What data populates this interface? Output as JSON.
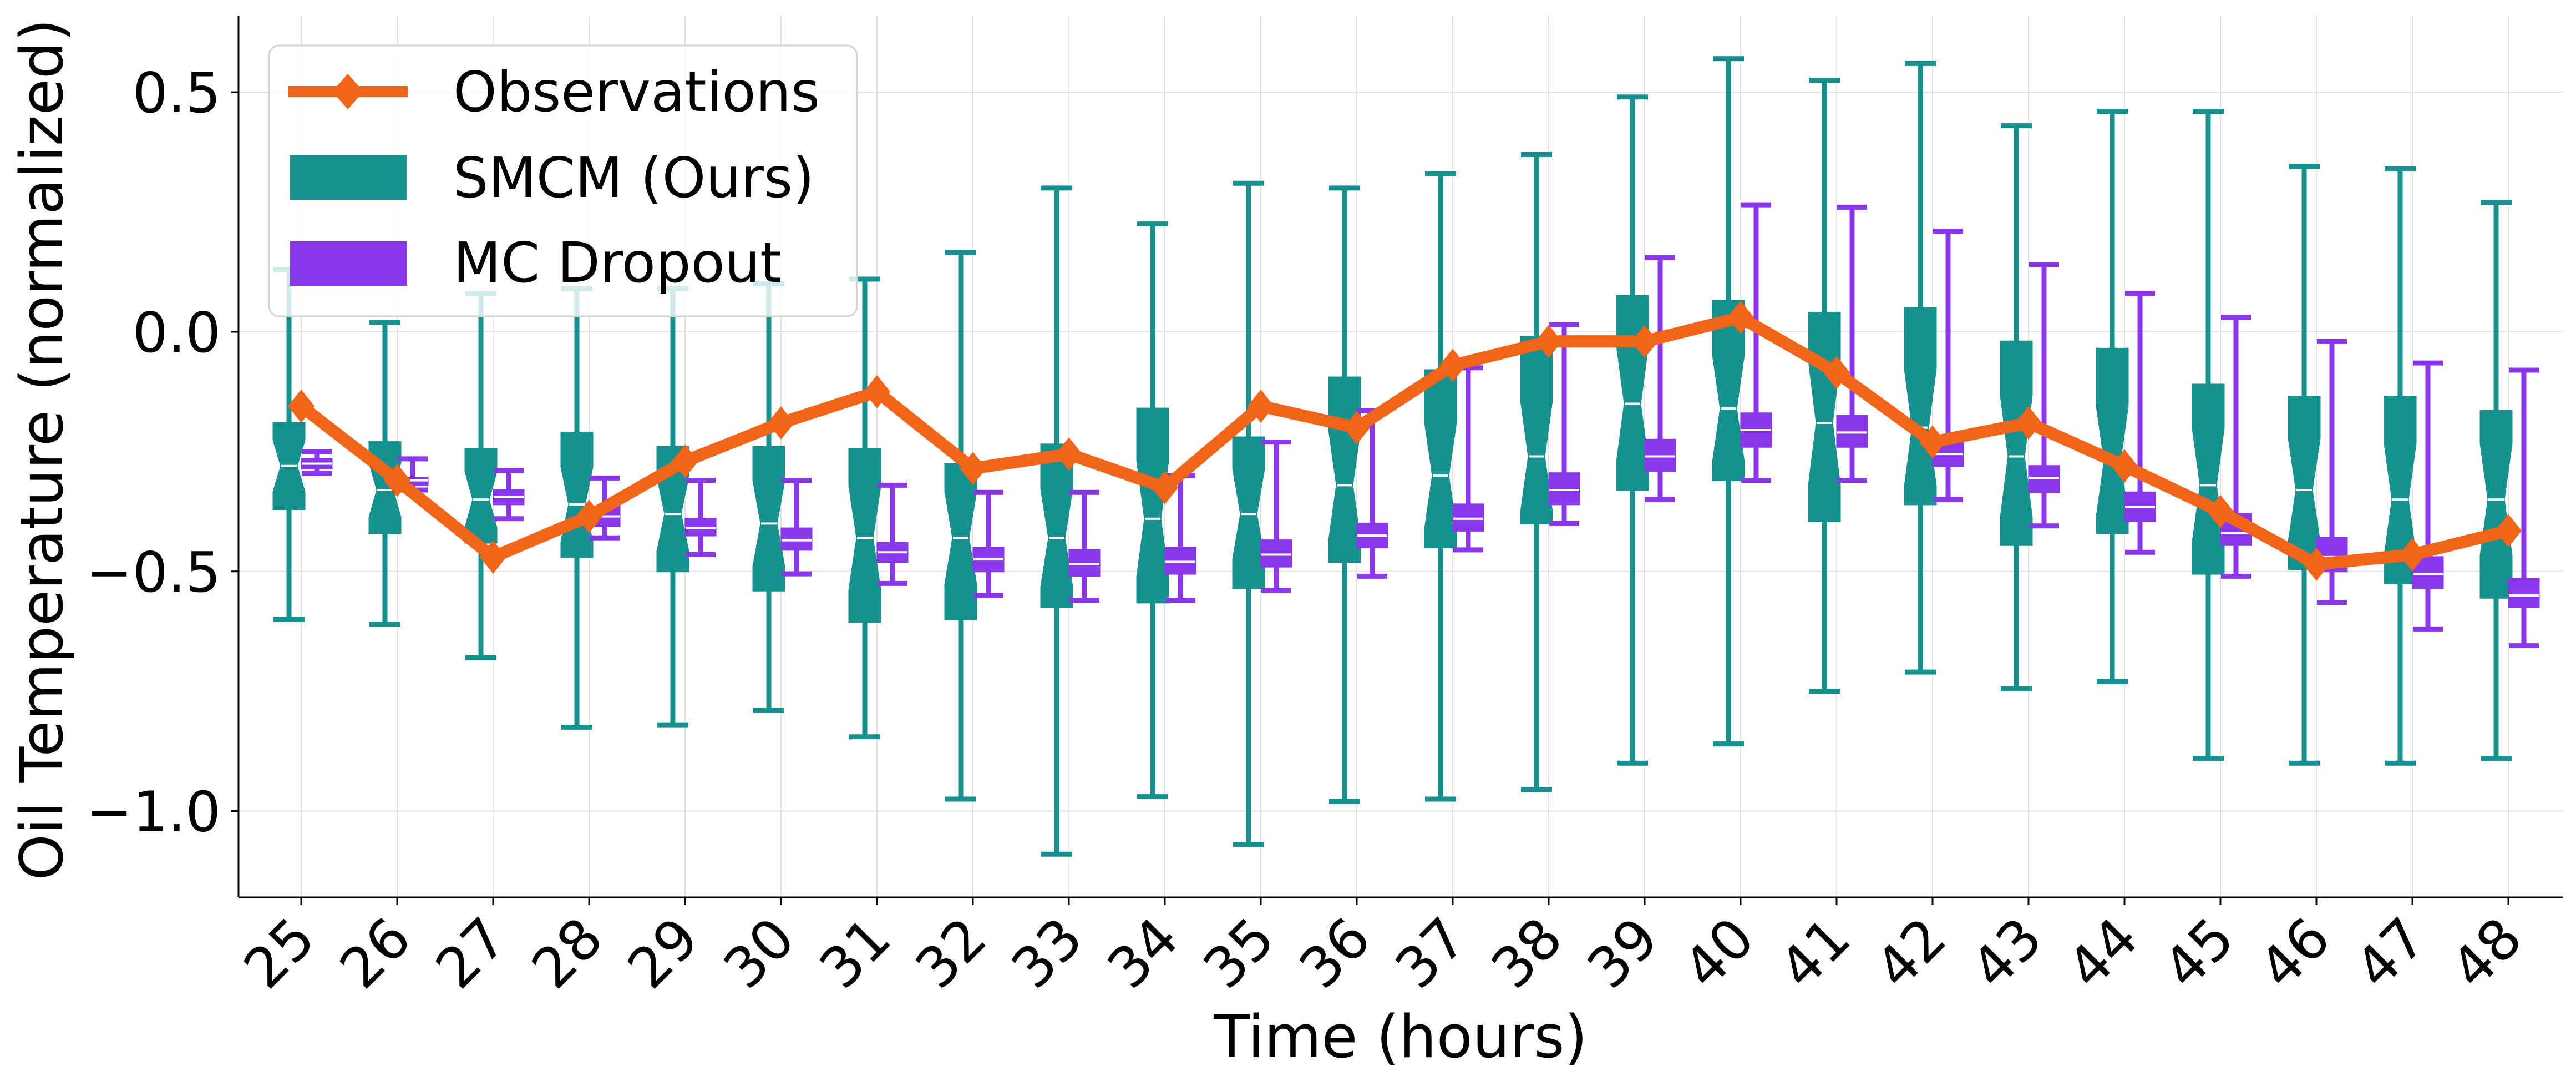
{
  "chart_data": {
    "type": "box",
    "xlabel": "Time (hours)",
    "ylabel": "Oil Temperature (normalized)",
    "ylim": [
      -1.18,
      0.66
    ],
    "yticks": [
      0.5,
      0.0,
      -0.5,
      -1.0
    ],
    "ytick_labels": [
      "0.5",
      "0.0",
      "−0.5",
      "−1.0"
    ],
    "grid": true,
    "legend_position": "top-left",
    "categories": [
      "25",
      "26",
      "27",
      "28",
      "29",
      "30",
      "31",
      "32",
      "33",
      "34",
      "35",
      "36",
      "37",
      "38",
      "39",
      "40",
      "41",
      "42",
      "43",
      "44",
      "45",
      "46",
      "47",
      "48"
    ],
    "series": [
      {
        "name": "Observations",
        "type": "line",
        "color": "#f26419",
        "marker": "diamond",
        "values": [
          -0.155,
          -0.31,
          -0.47,
          -0.385,
          -0.27,
          -0.19,
          -0.125,
          -0.285,
          -0.255,
          -0.325,
          -0.155,
          -0.2,
          -0.07,
          -0.02,
          -0.02,
          0.03,
          -0.085,
          -0.23,
          -0.19,
          -0.28,
          -0.375,
          -0.485,
          -0.465,
          -0.415
        ]
      },
      {
        "name": "SMCM (Ours)",
        "type": "box",
        "color": "#17918f",
        "notched": true,
        "boxes": [
          {
            "whislo": -0.6,
            "q1": -0.37,
            "med": -0.28,
            "q3": -0.19,
            "whishi": 0.13
          },
          {
            "whislo": -0.61,
            "q1": -0.42,
            "med": -0.33,
            "q3": -0.23,
            "whishi": 0.02
          },
          {
            "whislo": -0.68,
            "q1": -0.44,
            "med": -0.35,
            "q3": -0.245,
            "whishi": 0.08
          },
          {
            "whislo": -0.825,
            "q1": -0.47,
            "med": -0.36,
            "q3": -0.21,
            "whishi": 0.09
          },
          {
            "whislo": -0.82,
            "q1": -0.5,
            "med": -0.38,
            "q3": -0.24,
            "whishi": 0.09
          },
          {
            "whislo": -0.79,
            "q1": -0.54,
            "med": -0.4,
            "q3": -0.24,
            "whishi": 0.1
          },
          {
            "whislo": -0.845,
            "q1": -0.605,
            "med": -0.43,
            "q3": -0.245,
            "whishi": 0.11
          },
          {
            "whislo": -0.975,
            "q1": -0.6,
            "med": -0.43,
            "q3": -0.275,
            "whishi": 0.165
          },
          {
            "whislo": -1.09,
            "q1": -0.575,
            "med": -0.43,
            "q3": -0.235,
            "whishi": 0.3
          },
          {
            "whislo": -0.97,
            "q1": -0.565,
            "med": -0.39,
            "q3": -0.16,
            "whishi": 0.225
          },
          {
            "whislo": -1.07,
            "q1": -0.535,
            "med": -0.38,
            "q3": -0.22,
            "whishi": 0.31
          },
          {
            "whislo": -0.98,
            "q1": -0.48,
            "med": -0.32,
            "q3": -0.095,
            "whishi": 0.3
          },
          {
            "whislo": -0.975,
            "q1": -0.45,
            "med": -0.3,
            "q3": -0.08,
            "whishi": 0.33
          },
          {
            "whislo": -0.955,
            "q1": -0.4,
            "med": -0.26,
            "q3": -0.01,
            "whishi": 0.37
          },
          {
            "whislo": -0.9,
            "q1": -0.33,
            "med": -0.15,
            "q3": 0.075,
            "whishi": 0.49
          },
          {
            "whislo": -0.86,
            "q1": -0.31,
            "med": -0.16,
            "q3": 0.065,
            "whishi": 0.57
          },
          {
            "whislo": -0.75,
            "q1": -0.395,
            "med": -0.19,
            "q3": 0.04,
            "whishi": 0.525
          },
          {
            "whislo": -0.71,
            "q1": -0.36,
            "med": -0.2,
            "q3": 0.05,
            "whishi": 0.56
          },
          {
            "whislo": -0.745,
            "q1": -0.445,
            "med": -0.26,
            "q3": -0.02,
            "whishi": 0.43
          },
          {
            "whislo": -0.73,
            "q1": -0.42,
            "med": -0.27,
            "q3": -0.035,
            "whishi": 0.46
          },
          {
            "whislo": -0.89,
            "q1": -0.505,
            "med": -0.32,
            "q3": -0.11,
            "whishi": 0.46
          },
          {
            "whislo": -0.9,
            "q1": -0.495,
            "med": -0.33,
            "q3": -0.135,
            "whishi": 0.345
          },
          {
            "whislo": -0.9,
            "q1": -0.525,
            "med": -0.35,
            "q3": -0.135,
            "whishi": 0.34
          },
          {
            "whislo": -0.89,
            "q1": -0.555,
            "med": -0.35,
            "q3": -0.165,
            "whishi": 0.27
          }
        ]
      },
      {
        "name": "MC Dropout",
        "type": "box",
        "color": "#8a36eb",
        "notched": false,
        "boxes": [
          {
            "whislo": -0.295,
            "q1": -0.285,
            "med": -0.275,
            "q3": -0.265,
            "whishi": -0.25
          },
          {
            "whislo": -0.33,
            "q1": -0.32,
            "med": -0.31,
            "q3": -0.305,
            "whishi": -0.265
          },
          {
            "whislo": -0.39,
            "q1": -0.36,
            "med": -0.345,
            "q3": -0.33,
            "whishi": -0.29
          },
          {
            "whislo": -0.43,
            "q1": -0.405,
            "med": -0.385,
            "q3": -0.365,
            "whishi": -0.305
          },
          {
            "whislo": -0.465,
            "q1": -0.425,
            "med": -0.41,
            "q3": -0.39,
            "whishi": -0.31
          },
          {
            "whislo": -0.505,
            "q1": -0.455,
            "med": -0.435,
            "q3": -0.41,
            "whishi": -0.31
          },
          {
            "whislo": -0.525,
            "q1": -0.48,
            "med": -0.46,
            "q3": -0.44,
            "whishi": -0.32
          },
          {
            "whislo": -0.55,
            "q1": -0.5,
            "med": -0.475,
            "q3": -0.45,
            "whishi": -0.335
          },
          {
            "whislo": -0.56,
            "q1": -0.51,
            "med": -0.485,
            "q3": -0.455,
            "whishi": -0.335
          },
          {
            "whislo": -0.56,
            "q1": -0.505,
            "med": -0.48,
            "q3": -0.45,
            "whishi": -0.3
          },
          {
            "whislo": -0.54,
            "q1": -0.49,
            "med": -0.465,
            "q3": -0.435,
            "whishi": -0.23
          },
          {
            "whislo": -0.51,
            "q1": -0.45,
            "med": -0.425,
            "q3": -0.4,
            "whishi": -0.165
          },
          {
            "whislo": -0.455,
            "q1": -0.415,
            "med": -0.39,
            "q3": -0.36,
            "whishi": -0.075
          },
          {
            "whislo": -0.4,
            "q1": -0.36,
            "med": -0.33,
            "q3": -0.295,
            "whishi": 0.015
          },
          {
            "whislo": -0.35,
            "q1": -0.29,
            "med": -0.26,
            "q3": -0.225,
            "whishi": 0.155
          },
          {
            "whislo": -0.31,
            "q1": -0.24,
            "med": -0.205,
            "q3": -0.17,
            "whishi": 0.265
          },
          {
            "whislo": -0.31,
            "q1": -0.24,
            "med": -0.21,
            "q3": -0.175,
            "whishi": 0.26
          },
          {
            "whislo": -0.35,
            "q1": -0.28,
            "med": -0.255,
            "q3": -0.225,
            "whishi": 0.21
          },
          {
            "whislo": -0.405,
            "q1": -0.335,
            "med": -0.305,
            "q3": -0.28,
            "whishi": 0.14
          },
          {
            "whislo": -0.46,
            "q1": -0.395,
            "med": -0.365,
            "q3": -0.335,
            "whishi": 0.08
          },
          {
            "whislo": -0.51,
            "q1": -0.445,
            "med": -0.42,
            "q3": -0.38,
            "whishi": 0.03
          },
          {
            "whislo": -0.565,
            "q1": -0.5,
            "med": -0.47,
            "q3": -0.43,
            "whishi": -0.02
          },
          {
            "whislo": -0.62,
            "q1": -0.535,
            "med": -0.505,
            "q3": -0.47,
            "whishi": -0.065
          },
          {
            "whislo": -0.655,
            "q1": -0.575,
            "med": -0.55,
            "q3": -0.515,
            "whishi": -0.08
          }
        ]
      }
    ]
  }
}
